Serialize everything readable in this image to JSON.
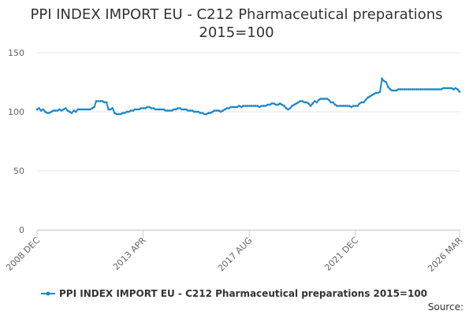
{
  "chart_data": {
    "type": "line",
    "title": [
      "PPI INDEX IMPORT EU - C212 Pharmaceutical preparations",
      "2015=100"
    ],
    "source": "Source:",
    "categories": [
      "2008 DEC",
      null,
      null,
      null,
      null,
      null,
      null,
      null,
      null,
      null,
      null,
      null,
      null,
      null,
      null,
      null,
      null,
      null,
      null,
      null,
      null,
      null,
      null,
      null,
      null,
      null,
      null,
      null,
      null,
      null,
      null,
      null,
      null,
      null,
      null,
      null,
      null,
      null,
      null,
      null,
      null,
      null,
      null,
      null,
      null,
      null,
      null,
      null,
      null,
      null,
      null,
      null,
      "2013 APR",
      null,
      null,
      null,
      null,
      null,
      null,
      null,
      null,
      null,
      null,
      null,
      null,
      null,
      null,
      null,
      null,
      null,
      null,
      null,
      null,
      null,
      null,
      null,
      null,
      null,
      null,
      null,
      null,
      null,
      null,
      null,
      null,
      null,
      null,
      null,
      null,
      null,
      null,
      null,
      null,
      null,
      null,
      null,
      null,
      null,
      null,
      null,
      null,
      null,
      null,
      null,
      "2017 AUG",
      null,
      null,
      null,
      null,
      null,
      null,
      null,
      null,
      null,
      null,
      null,
      null,
      null,
      null,
      null,
      null,
      null,
      null,
      null,
      null,
      null,
      null,
      null,
      null,
      null,
      null,
      null,
      null,
      null,
      null,
      null,
      null,
      null,
      null,
      null,
      null,
      null,
      null,
      null,
      null,
      null,
      null,
      null,
      null,
      null,
      null,
      null,
      null,
      null,
      null,
      null,
      "2021 DEC",
      null,
      null,
      null,
      null,
      null,
      null,
      null,
      null,
      null,
      null,
      null,
      null,
      null,
      null,
      null,
      null,
      null,
      null,
      null,
      null,
      null,
      null,
      null,
      null,
      null,
      null,
      null,
      null,
      null,
      null,
      null,
      null,
      null,
      null,
      null,
      null,
      null,
      null,
      null,
      null,
      null,
      null,
      null,
      null,
      null,
      null,
      null,
      null,
      null,
      null,
      "2026 MAR"
    ],
    "series": [
      {
        "name": "PPI INDEX IMPORT EU - C212 Pharmaceutical preparations 2015=100",
        "color": "#1f87c6",
        "values": [
          102,
          103,
          101,
          102,
          100,
          99,
          99,
          100,
          101,
          101,
          101,
          102,
          101,
          102,
          103,
          101,
          100,
          99,
          101,
          100,
          102,
          102,
          102,
          102,
          102,
          102,
          102,
          103,
          104,
          109,
          109,
          109,
          109,
          108,
          108,
          102,
          102,
          103,
          99,
          98,
          98,
          98,
          99,
          99,
          100,
          100,
          101,
          101,
          102,
          102,
          102,
          103,
          103,
          103,
          104,
          104,
          103,
          103,
          102,
          102,
          102,
          102,
          102,
          101,
          101,
          101,
          101,
          102,
          102,
          103,
          103,
          102,
          102,
          102,
          101,
          101,
          101,
          100,
          100,
          100,
          99,
          99,
          98,
          98,
          99,
          99,
          100,
          101,
          101,
          101,
          100,
          101,
          102,
          103,
          103,
          104,
          104,
          104,
          104,
          105,
          104,
          105,
          105,
          105,
          105,
          105,
          105,
          105,
          105,
          104,
          105,
          105,
          105,
          106,
          106,
          107,
          107,
          106,
          106,
          107,
          106,
          105,
          103,
          102,
          103,
          105,
          106,
          107,
          108,
          109,
          109,
          108,
          108,
          107,
          105,
          107,
          109,
          108,
          110,
          111,
          111,
          111,
          111,
          110,
          108,
          108,
          106,
          105,
          105,
          105,
          105,
          105,
          105,
          105,
          104,
          105,
          105,
          105,
          107,
          108,
          108,
          110,
          112,
          113,
          114,
          115,
          116,
          116,
          117,
          128,
          126,
          125,
          121,
          119,
          118,
          118,
          118,
          119,
          119,
          119,
          119,
          119,
          119,
          119,
          119,
          119,
          119,
          119,
          119,
          119,
          119,
          119,
          119,
          119,
          119,
          119,
          119,
          119,
          119,
          120,
          120,
          120,
          120,
          120,
          119,
          120,
          119,
          117
        ]
      }
    ],
    "ylim": [
      0,
      150
    ],
    "yticks": [
      0,
      50,
      100,
      150
    ],
    "grid": true
  }
}
